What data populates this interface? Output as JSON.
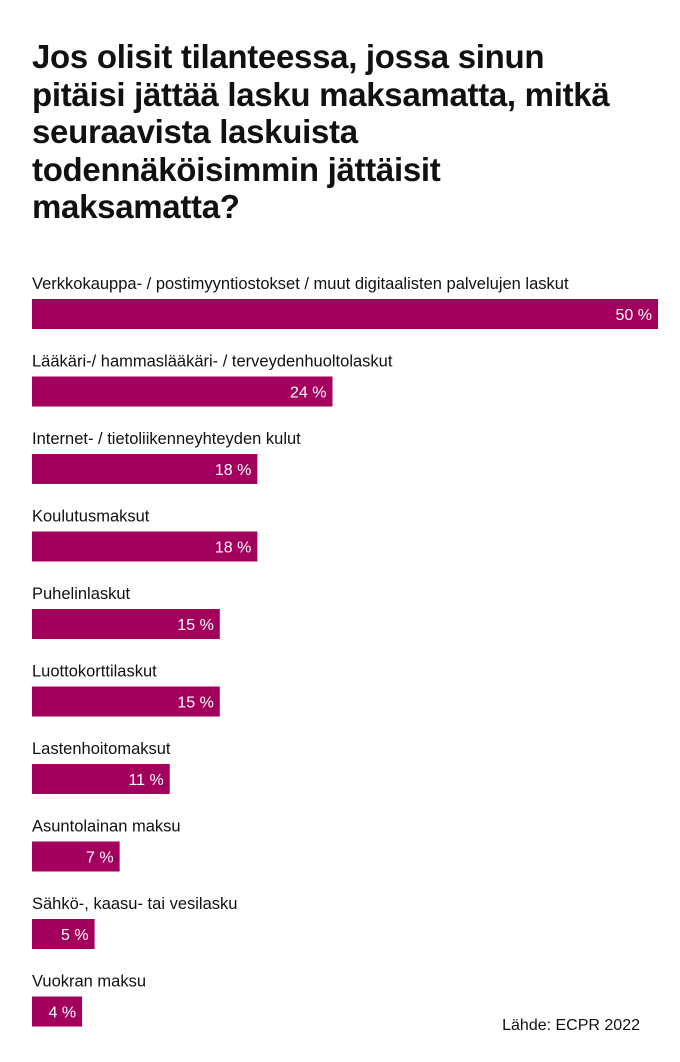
{
  "title": "Jos olisit tilanteessa, jossa sinun pitäisi jättää lasku maksamatta, mitkä seuraavista laskuista todennäköisimmin jättäisit maksamatta?",
  "source": "Lähde: ECPR 2022",
  "colors": {
    "bar": "#a3005e",
    "bar_label": "#ffffff",
    "text": "#111111"
  },
  "chart_data": {
    "type": "bar",
    "orientation": "horizontal",
    "title": "Jos olisit tilanteessa, jossa sinun pitäisi jättää lasku maksamatta, mitkä seuraavista laskuista todennäköisimmin jättäisit maksamatta?",
    "categories": [
      "Verkkokauppa- / postimyyntiostokset / muut digitaalisten palvelujen laskut",
      "Lääkäri-/ hammaslääkäri- / terveydenhuoltolaskut",
      "Internet- / tietoliikenneyhteyden kulut",
      "Koulutusmaksut",
      "Puhelinlaskut",
      "Luottokorttilaskut",
      "Lastenhoitomaksut",
      "Asuntolainan maksu",
      "Sähkö-, kaasu- tai vesilasku",
      "Vuokran maksu"
    ],
    "values": [
      50,
      24,
      18,
      18,
      15,
      15,
      11,
      7,
      5,
      4
    ],
    "value_labels": [
      "50 %",
      "24 %",
      "18 %",
      "18 %",
      "15 %",
      "15 %",
      "11 %",
      "7 %",
      "5 %",
      "4 %"
    ],
    "unit": "%",
    "xlim": [
      0,
      50
    ],
    "grid": false,
    "legend": "none"
  }
}
